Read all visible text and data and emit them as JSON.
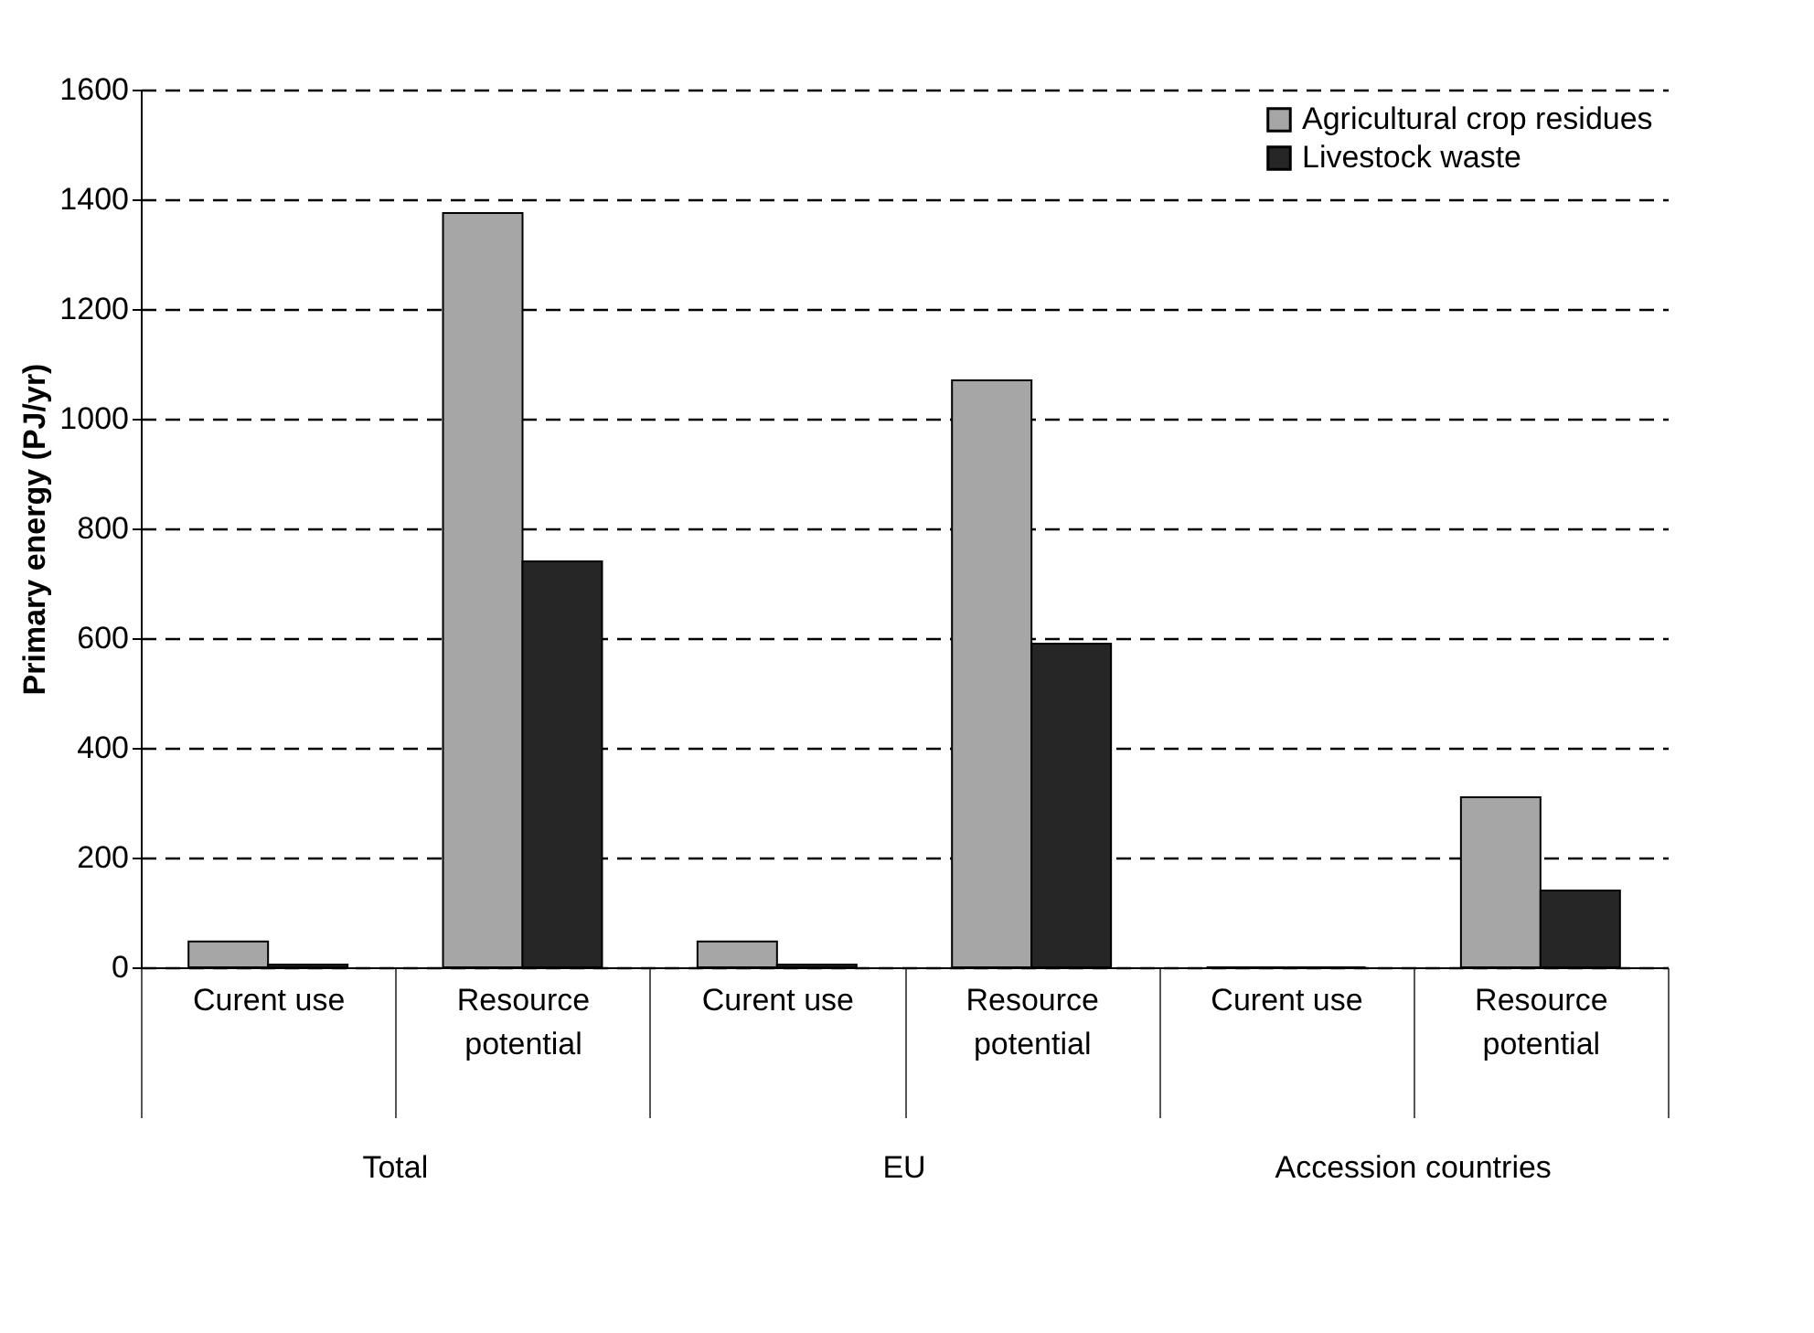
{
  "chart_data": {
    "type": "bar",
    "ylabel": "Primary energy (PJ/yr)",
    "categories": [
      "Curent use",
      "Resource potential",
      "Curent use",
      "Resource potential",
      "Curent use",
      "Resource potential"
    ],
    "series": [
      {
        "name": "Agricultural crop residues",
        "color": "#a6a6a6",
        "values": [
          47,
          1375,
          47,
          1070,
          0,
          310
        ]
      },
      {
        "name": "Livestock waste",
        "color": "#262626",
        "values": [
          5,
          740,
          5,
          590,
          0,
          140
        ]
      }
    ],
    "annotations": [
      "Total",
      "EU",
      "Accession countries"
    ],
    "ylim": [
      0,
      1600
    ],
    "yticks": [
      0,
      200,
      400,
      600,
      800,
      1000,
      1200,
      1400,
      1600
    ],
    "grid": "y",
    "legend": "top right"
  }
}
